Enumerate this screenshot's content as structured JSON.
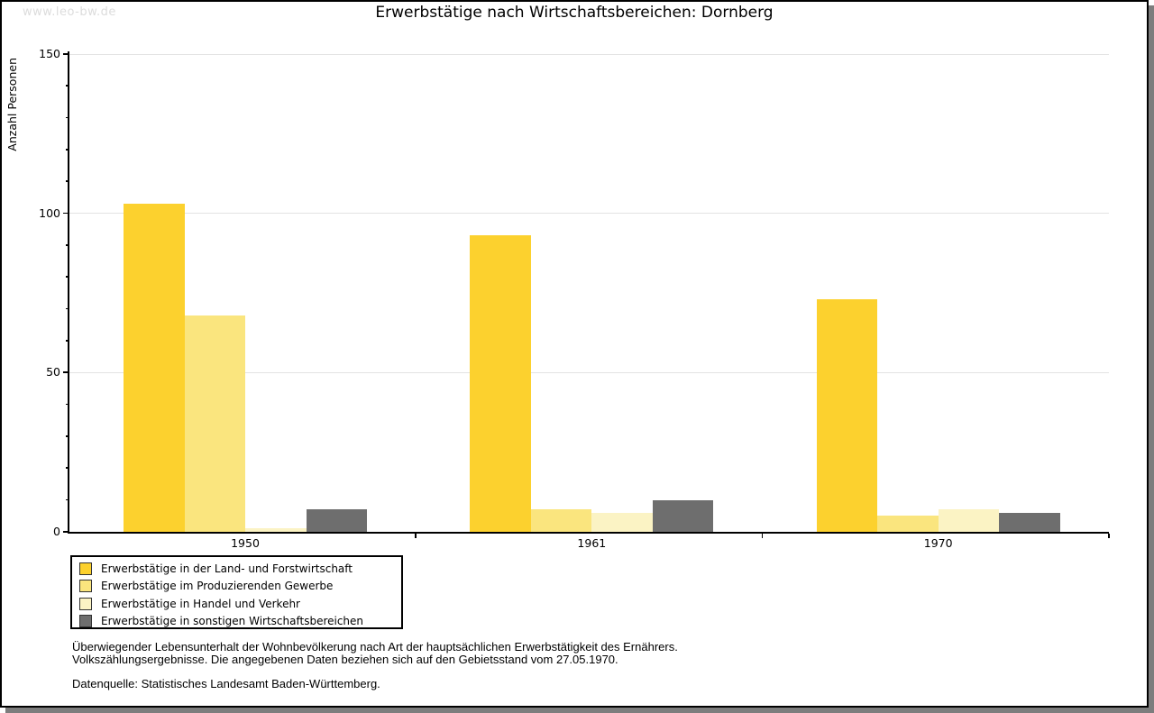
{
  "watermark": "www.leo-bw.de",
  "chart_data": {
    "type": "bar",
    "title": "Erwerbstätige nach Wirtschaftsbereichen: Dornberg",
    "xlabel": "",
    "ylabel": "Anzahl Personen",
    "categories": [
      "1950",
      "1961",
      "1970"
    ],
    "series": [
      {
        "name": "Erwerbstätige in der Land- und Forstwirtschaft",
        "color": "#FCD12E",
        "values": [
          103,
          93,
          73
        ]
      },
      {
        "name": "Erwerbstätige im Produzierenden Gewerbe",
        "color": "#FAE57E",
        "values": [
          68,
          7,
          5
        ]
      },
      {
        "name": "Erwerbstätige in Handel und Verkehr",
        "color": "#FBF3C4",
        "values": [
          1,
          6,
          7
        ]
      },
      {
        "name": "Erwerbstätige in sonstigen Wirtschaftsbereichen",
        "color": "#6E6E6E",
        "values": [
          7,
          10,
          6
        ]
      }
    ],
    "ylim": [
      0,
      150
    ],
    "yticks": [
      0,
      50,
      100,
      150
    ],
    "minor_tick_step": 10,
    "grid": true,
    "legend_position": "bottom-left"
  },
  "colors": {
    "grid": "#E3E3E3",
    "axis": "#000000",
    "frame_shadow": "#7D7D7D",
    "watermark": "#DCDCDC"
  },
  "footer": {
    "line1": "Überwiegender Lebensunterhalt der Wohnbevölkerung nach Art der hauptsächlichen Erwerbstätigkeit des Ernährers.",
    "line2": "Volkszählungsergebnisse. Die angegebenen Daten beziehen sich auf den Gebietsstand vom 27.05.1970.",
    "source": "Datenquelle: Statistisches Landesamt Baden-Württemberg."
  }
}
